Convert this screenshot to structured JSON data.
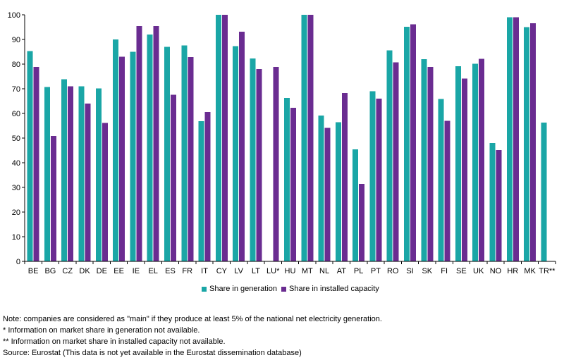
{
  "chart_data": {
    "type": "bar",
    "categories": [
      "BE",
      "BG",
      "CZ",
      "DK",
      "DE",
      "EE",
      "IE",
      "EL",
      "ES",
      "FR",
      "IT",
      "CY",
      "LV",
      "LT",
      "LU*",
      "HU",
      "MT",
      "NL",
      "AT",
      "PL",
      "PT",
      "RO",
      "SI",
      "SK",
      "FI",
      "SE",
      "UK",
      "NO",
      "HR",
      "MK",
      "TR**"
    ],
    "series": [
      {
        "name": "Share in generation",
        "color": "#1aa6a6",
        "values": [
          85.3,
          70.7,
          73.8,
          71.0,
          70.2,
          90.0,
          85.0,
          92.0,
          87.0,
          87.6,
          56.8,
          100,
          87.3,
          82.3,
          null,
          66.3,
          100,
          59.2,
          56.4,
          45.5,
          69.0,
          85.6,
          95.2,
          82.0,
          65.8,
          79.1,
          80.2,
          48.0,
          99.0,
          95.0,
          56.3
        ]
      },
      {
        "name": "Share in installed capacity",
        "color": "#6a2c91",
        "values": [
          78.8,
          50.9,
          71.0,
          64.0,
          56.2,
          83.0,
          95.5,
          95.4,
          67.6,
          82.9,
          60.6,
          100,
          93.1,
          78.0,
          78.8,
          62.3,
          100,
          54.2,
          68.3,
          31.4,
          66.0,
          80.7,
          96.2,
          78.8,
          57.0,
          74.1,
          82.2,
          45.2,
          99.0,
          96.6,
          null
        ]
      }
    ],
    "ylim": [
      0,
      100
    ],
    "yticks": [
      0,
      10,
      20,
      30,
      40,
      50,
      60,
      70,
      80,
      90,
      100
    ],
    "grid": false,
    "legend": "bottom",
    "xlabel": "",
    "ylabel": ""
  },
  "notes": [
    "Note: companies are considered as \"main\" if they produce at least 5% of the national net electricity generation.",
    "* Information on market share in generation not available.",
    "** Information on market share in installed capacity not available.",
    "Source: Eurostat (This data is not yet available in the Eurostat dissemination database)"
  ]
}
